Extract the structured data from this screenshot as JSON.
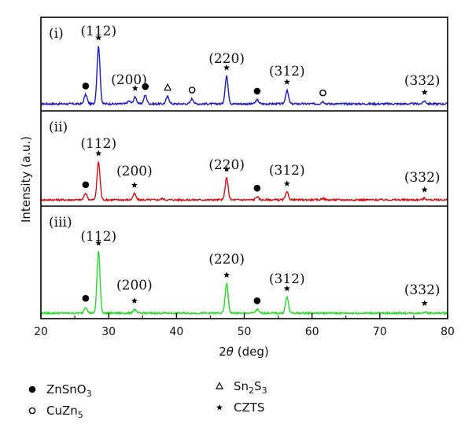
{
  "chart_data": {
    "type": "line",
    "xlabel_prefix": "2",
    "xlabel_theta": "θ",
    "xlabel_suffix": " (deg)",
    "ylabel": "Intensity (a.u.)",
    "xlim": [
      20,
      80
    ],
    "x_ticks": [
      "20",
      "30",
      "40",
      "50",
      "60",
      "70",
      "80"
    ],
    "panels": [
      {
        "label": "(i)",
        "color": "#1a1acc",
        "peaks": [
          {
            "x": 26.6,
            "y": 0.16
          },
          {
            "x": 28.5,
            "y": 1.0
          },
          {
            "x": 33.0,
            "y": 0.05
          },
          {
            "x": 33.9,
            "y": 0.12
          },
          {
            "x": 35.4,
            "y": 0.15
          },
          {
            "x": 38.7,
            "y": 0.13
          },
          {
            "x": 42.3,
            "y": 0.09
          },
          {
            "x": 47.4,
            "y": 0.48
          },
          {
            "x": 51.9,
            "y": 0.07
          },
          {
            "x": 56.3,
            "y": 0.23
          },
          {
            "x": 61.6,
            "y": 0.04
          },
          {
            "x": 76.6,
            "y": 0.05
          }
        ],
        "annotations": [
          {
            "text": "(112)",
            "x": 28.5
          },
          {
            "text": "(200)",
            "x": 33.0
          },
          {
            "text": "(220)",
            "x": 47.4
          },
          {
            "text": "(312)",
            "x": 56.3
          },
          {
            "text": "(332)",
            "x": 76.6
          }
        ],
        "markers": [
          {
            "type": "filled-circle",
            "x": 26.6
          },
          {
            "type": "star",
            "x": 28.5
          },
          {
            "type": "star",
            "x": 33.9
          },
          {
            "type": "filled-circle",
            "x": 35.4
          },
          {
            "type": "triangle",
            "x": 38.7
          },
          {
            "type": "open-circle",
            "x": 42.3
          },
          {
            "type": "star",
            "x": 47.4
          },
          {
            "type": "filled-circle",
            "x": 51.9
          },
          {
            "type": "star",
            "x": 56.3
          },
          {
            "type": "open-circle",
            "x": 61.6
          },
          {
            "type": "star",
            "x": 76.6
          }
        ]
      },
      {
        "label": "(ii)",
        "color": "#e01010",
        "peaks": [
          {
            "x": 26.6,
            "y": 0.17
          },
          {
            "x": 28.5,
            "y": 1.0
          },
          {
            "x": 33.8,
            "y": 0.16
          },
          {
            "x": 37.9,
            "y": 0.03
          },
          {
            "x": 47.4,
            "y": 0.58
          },
          {
            "x": 51.9,
            "y": 0.08
          },
          {
            "x": 56.3,
            "y": 0.2
          },
          {
            "x": 61.6,
            "y": 0.04
          },
          {
            "x": 76.6,
            "y": 0.04
          }
        ],
        "annotations": [
          {
            "text": "(112)",
            "x": 28.5
          },
          {
            "text": "(200)",
            "x": 33.8
          },
          {
            "text": "(220)",
            "x": 47.4
          },
          {
            "text": "(312)",
            "x": 56.3
          },
          {
            "text": "(332)",
            "x": 76.6
          }
        ],
        "markers": [
          {
            "type": "filled-circle",
            "x": 26.6
          },
          {
            "type": "star",
            "x": 28.5
          },
          {
            "type": "star",
            "x": 33.8
          },
          {
            "type": "star",
            "x": 47.4
          },
          {
            "type": "filled-circle",
            "x": 51.9
          },
          {
            "type": "star",
            "x": 56.3
          },
          {
            "type": "star",
            "x": 76.6
          }
        ]
      },
      {
        "label": "(iii)",
        "color": "#22dd22",
        "peaks": [
          {
            "x": 26.6,
            "y": 0.1
          },
          {
            "x": 28.5,
            "y": 1.0
          },
          {
            "x": 33.8,
            "y": 0.06
          },
          {
            "x": 47.4,
            "y": 0.48
          },
          {
            "x": 51.9,
            "y": 0.06
          },
          {
            "x": 56.3,
            "y": 0.26
          },
          {
            "x": 76.6,
            "y": 0.02
          }
        ],
        "annotations": [
          {
            "text": "(112)",
            "x": 28.5
          },
          {
            "text": "(200)",
            "x": 33.8
          },
          {
            "text": "(220)",
            "x": 47.4
          },
          {
            "text": "(312)",
            "x": 56.3
          },
          {
            "text": "(332)",
            "x": 76.6
          }
        ],
        "markers": [
          {
            "type": "filled-circle",
            "x": 26.6
          },
          {
            "type": "star",
            "x": 28.5
          },
          {
            "type": "star",
            "x": 33.8
          },
          {
            "type": "star",
            "x": 47.4
          },
          {
            "type": "filled-circle",
            "x": 51.9
          },
          {
            "type": "star",
            "x": 56.3
          },
          {
            "type": "star",
            "x": 76.6
          }
        ]
      }
    ],
    "legend": [
      {
        "marker": "filled-circle",
        "base": "ZnSnO",
        "sub": "3",
        "tail": ""
      },
      {
        "marker": "open-circle",
        "base": "CuZn",
        "sub": "5",
        "tail": ""
      },
      {
        "marker": "triangle",
        "base": "Sn",
        "sub": "2",
        "tail": "S",
        "sub2": "3"
      },
      {
        "marker": "star",
        "base": "CZTS",
        "sub": "",
        "tail": ""
      }
    ]
  }
}
